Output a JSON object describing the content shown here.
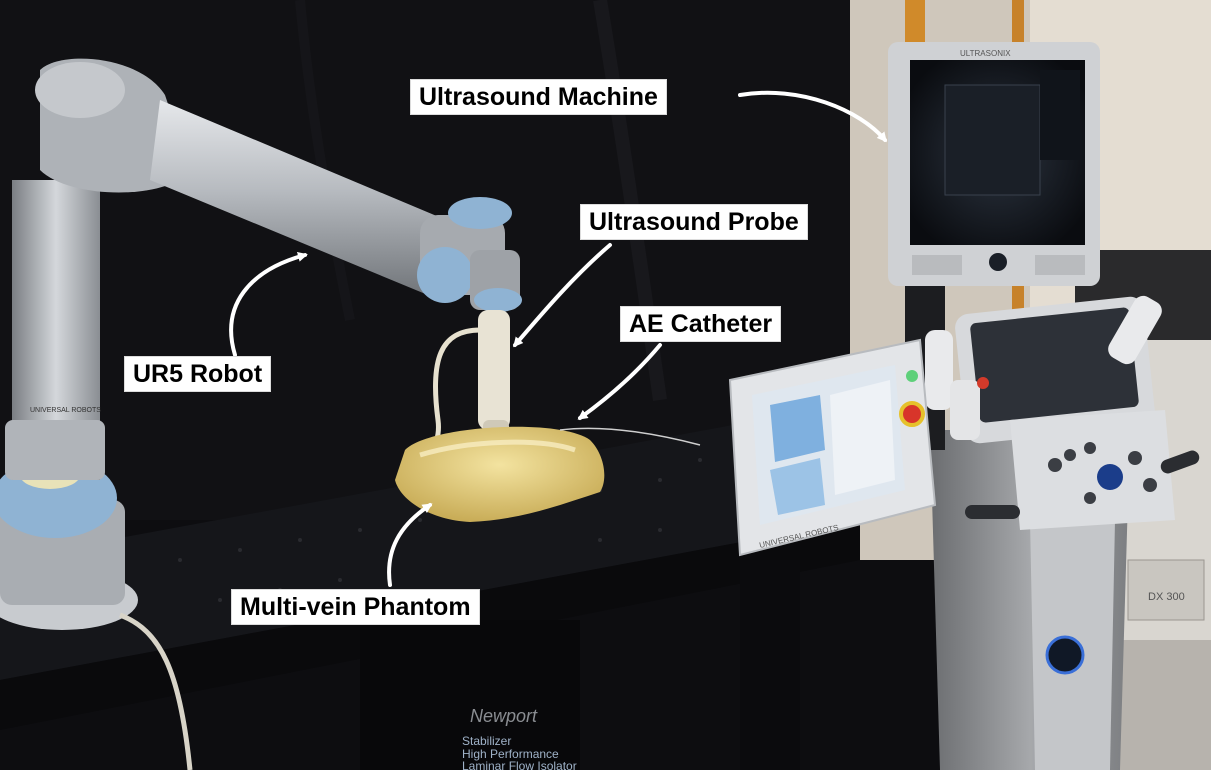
{
  "labels": {
    "ultrasound_machine": "Ultrasound Machine",
    "ultrasound_probe": "Ultrasound Probe",
    "ae_catheter": "AE Catheter",
    "ur5_robot": "UR5 Robot",
    "multi_vein_phantom": "Multi-vein Phantom"
  },
  "device_text": {
    "monitor_brand": "ULTRASONIX",
    "tablet_brand": "UNIVERSAL ROBOTS",
    "robot_base_brand": "UNIVERSAL ROBOTS",
    "table_brand": "Newport",
    "table_product_1": "Stabilizer",
    "table_product_2": "High Performance",
    "table_product_3": "Laminar Flow Isolator",
    "side_unit_text": "DX 300"
  },
  "colors": {
    "backdrop": "#0d0d10",
    "robot_silver": "#b9bcc1",
    "robot_joint_blue": "#8fb3d3",
    "phantom_gel": "#d8c77a",
    "label_bg": "#ffffff",
    "label_text": "#000000"
  }
}
